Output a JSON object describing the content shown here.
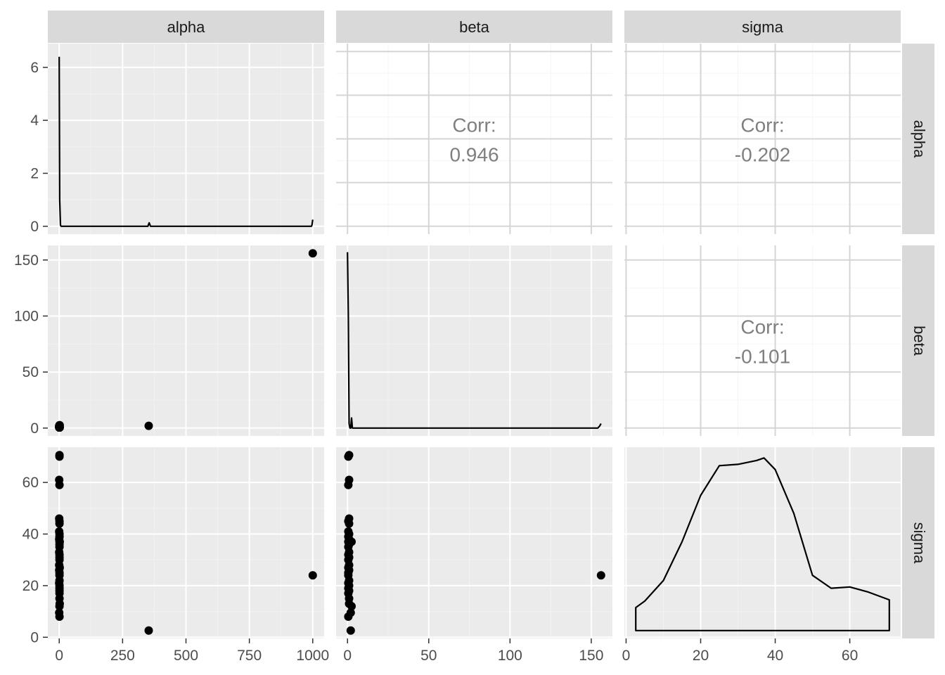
{
  "chart_data": {
    "type": "scatter",
    "title": "",
    "variables": [
      "alpha",
      "beta",
      "sigma"
    ],
    "ranges": {
      "alpha": [
        0,
        1000
      ],
      "beta": [
        0,
        156
      ],
      "sigma": [
        2.6,
        70.6
      ]
    },
    "axis_ticks": {
      "alpha": [
        0,
        250,
        500,
        750,
        1000
      ],
      "beta": [
        0,
        50,
        100,
        150
      ],
      "sigma": [
        0,
        20,
        40,
        60
      ]
    },
    "density_yticks": {
      "alpha": [
        0,
        2,
        4,
        6
      ]
    },
    "correlations": [
      {
        "row": "alpha",
        "col": "beta",
        "label": "Corr:",
        "value": "0.946"
      },
      {
        "row": "alpha",
        "col": "sigma",
        "label": "Corr:",
        "value": "-0.202"
      },
      {
        "row": "beta",
        "col": "sigma",
        "label": "Corr:",
        "value": "-0.101"
      }
    ],
    "densities": {
      "alpha": {
        "ylim": [
          0,
          6.6
        ],
        "x": [
          0,
          2,
          5,
          6,
          8,
          350,
          352,
          355,
          358,
          360,
          995,
          997,
          1000
        ],
        "y": [
          6.4,
          1.0,
          0.05,
          0.02,
          0.0,
          0.0,
          0.06,
          0.13,
          0.05,
          0.0,
          0.0,
          0.05,
          0.25
        ]
      },
      "beta": {
        "ylim": [
          0,
          156
        ],
        "x": [
          0,
          0.5,
          1,
          1.5,
          2,
          2.5,
          3,
          3.5,
          5,
          154,
          155,
          156
        ],
        "y": [
          157,
          100,
          4,
          0,
          0,
          9,
          0,
          0,
          0,
          0,
          1.5,
          4
        ]
      },
      "sigma": {
        "ylim": [
          2.6,
          70.6
        ],
        "x": [
          2.6,
          5,
          10,
          15,
          20,
          25,
          30,
          35,
          37,
          40,
          45,
          50,
          55,
          60,
          65,
          70.6
        ],
        "y": [
          11.5,
          14,
          22,
          37,
          55,
          66.5,
          67,
          68.5,
          69.5,
          65,
          48,
          24,
          19,
          19.5,
          17.5,
          14.5
        ]
      }
    },
    "points": {
      "alpha": [
        1,
        1,
        0,
        1,
        0,
        1,
        1,
        0,
        1,
        1,
        0,
        1,
        1,
        1,
        0,
        1,
        1,
        1,
        0,
        2,
        0,
        1,
        1,
        0,
        1,
        1,
        1,
        1,
        2,
        0,
        1,
        1,
        1,
        1,
        2,
        353,
        1000
      ],
      "beta": [
        1,
        0.5,
        1,
        0.5,
        1,
        0.5,
        1,
        0.5,
        1,
        0.5,
        1,
        0.5,
        1,
        0.5,
        1,
        0.5,
        1,
        0.5,
        1,
        0.5,
        1,
        0.5,
        1,
        0.5,
        1,
        0.5,
        1,
        0.5,
        1,
        2,
        2.5,
        0.5,
        1,
        0.5,
        2.5,
        2,
        156
      ],
      "sigma": [
        70.6,
        70,
        61,
        59,
        46,
        45,
        44,
        41,
        40,
        39,
        38,
        37,
        36,
        35,
        33,
        32,
        31,
        30,
        28,
        27,
        26,
        24,
        22,
        21,
        20,
        19,
        18,
        17,
        13,
        9.5,
        12,
        8,
        15,
        25,
        37,
        2.6,
        24
      ]
    }
  }
}
